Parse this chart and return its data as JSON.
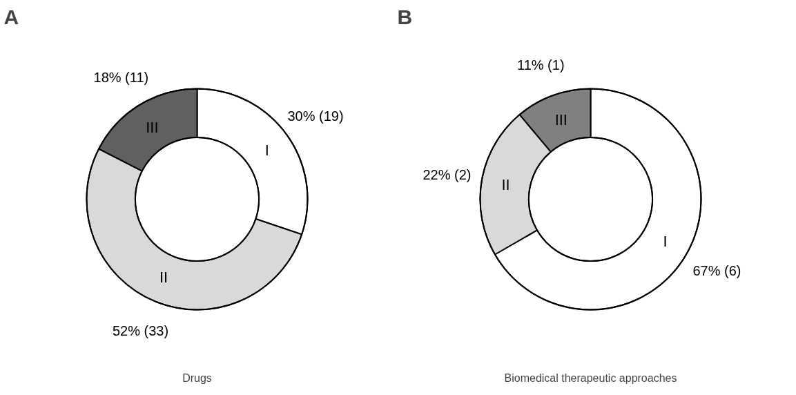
{
  "chart_data": [
    {
      "type": "donut",
      "title": "A",
      "xlabel": "Drugs",
      "categories": [
        "I",
        "II",
        "III"
      ],
      "values": [
        19,
        33,
        11
      ],
      "colors": [
        "#ffffff",
        "#d9d9d9",
        "#606060"
      ],
      "value_labels": [
        "30% (19)",
        "52% (33)",
        "18% (11)"
      ]
    },
    {
      "type": "donut",
      "title": "B",
      "xlabel": "Biomedical therapeutic approaches",
      "categories": [
        "I",
        "II",
        "III"
      ],
      "values": [
        6,
        2,
        1
      ],
      "colors": [
        "#ffffff",
        "#d9d9d9",
        "#808080"
      ],
      "value_labels": [
        "67% (6)",
        "22% (2)",
        "11% (1)"
      ]
    }
  ]
}
